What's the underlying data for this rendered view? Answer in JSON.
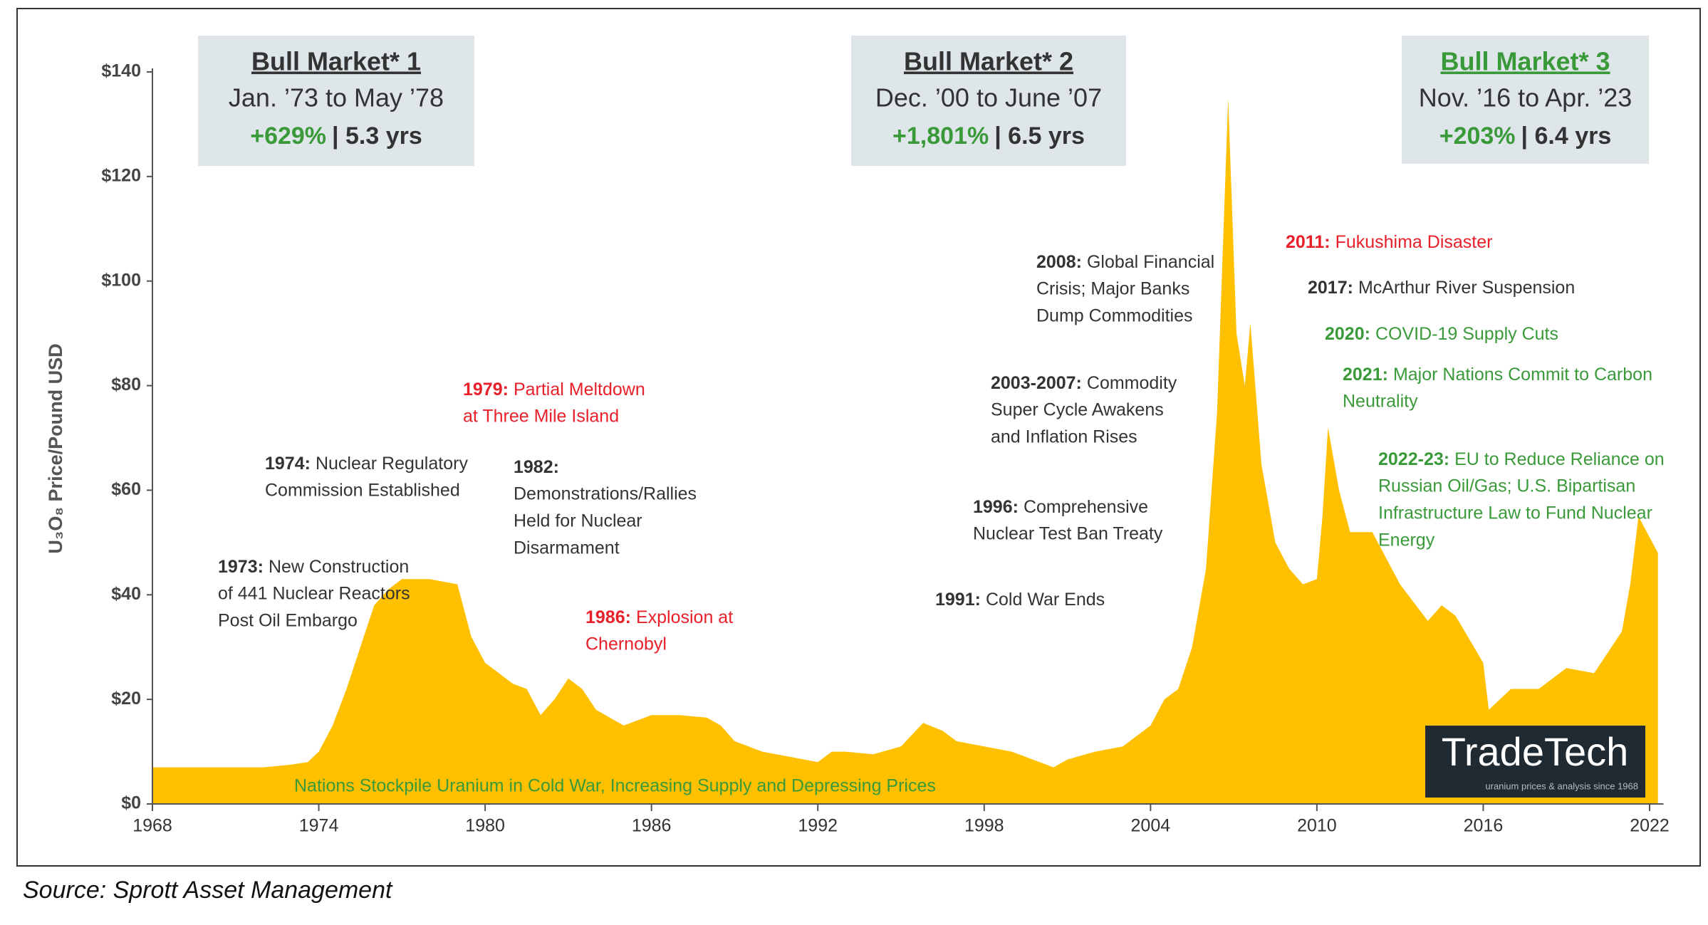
{
  "chart_data": {
    "type": "area",
    "y_label": "U₃O₈ Price/Pound USD",
    "source": "Source: Sprott Asset Management",
    "color": "#ffc000",
    "x": [
      1968,
      1972,
      1973,
      1973.6,
      1974,
      1974.5,
      1975,
      1975.5,
      1976,
      1976.5,
      1977,
      1978,
      1979,
      1979.5,
      1980,
      1981,
      1981.5,
      1982,
      1982.5,
      1983,
      1983.5,
      1984,
      1985,
      1986,
      1987,
      1988,
      1988.5,
      1989,
      1990,
      1991,
      1992,
      1992.5,
      1993,
      1994,
      1995,
      1995.8,
      1996.5,
      1997,
      1998,
      1999,
      2000,
      2000.5,
      2001,
      2002,
      2003,
      2004,
      2004.5,
      2005,
      2005.5,
      2006,
      2006.4,
      2006.8,
      2007.1,
      2007.4,
      2007.6,
      2008,
      2008.5,
      2009,
      2009.5,
      2010,
      2010.2,
      2010.4,
      2010.8,
      2011.2,
      2012,
      2013,
      2014,
      2014.5,
      2015,
      2016,
      2016.2,
      2017,
      2018,
      2019,
      2020,
      2021,
      2021.3,
      2021.6,
      2022,
      2022.3
    ],
    "values": [
      7,
      7,
      7.5,
      8,
      10,
      15,
      22,
      30,
      38,
      41,
      43,
      43,
      42,
      32,
      27,
      23,
      22,
      17,
      20,
      24,
      22,
      18,
      15,
      17,
      17,
      16.5,
      15,
      12,
      10,
      9,
      8,
      10,
      10,
      9.5,
      11,
      15.5,
      14,
      12,
      11,
      10,
      8,
      7,
      8.5,
      10,
      11,
      15,
      20,
      22,
      30,
      45,
      75,
      135,
      90,
      80,
      92,
      65,
      50,
      45,
      42,
      43,
      55,
      72,
      60,
      52,
      52,
      42,
      35,
      38,
      36,
      27,
      18,
      22,
      22,
      26,
      25,
      33,
      42,
      55,
      51,
      48
    ],
    "xlim": [
      1968,
      2022.5
    ],
    "ylim": [
      0,
      140
    ],
    "xticks": [
      1968,
      1974,
      1980,
      1986,
      1992,
      1998,
      2004,
      2010,
      2016,
      2022
    ],
    "yticks": [
      {
        "value": 0,
        "label": "$0"
      },
      {
        "value": 20,
        "label": "$20"
      },
      {
        "value": 40,
        "label": "$40"
      },
      {
        "value": 60,
        "label": "$60"
      },
      {
        "value": 80,
        "label": "$80"
      },
      {
        "value": 100,
        "label": "$100"
      },
      {
        "value": 120,
        "label": "$120"
      },
      {
        "value": 140,
        "label": "$140"
      }
    ],
    "bull_markets": [
      {
        "title": "Bull Market* 1",
        "dates": "Jan. ’73 to May ’78",
        "gain": "+629%",
        "duration": "| 5.3 yrs",
        "title_color": "#333333"
      },
      {
        "title": "Bull Market* 2",
        "dates": "Dec. ’00 to June ’07",
        "gain": "+1,801%",
        "duration": "| 6.5 yrs",
        "title_color": "#333333"
      },
      {
        "title": "Bull Market* 3",
        "dates": "Nov. ’16 to Apr. ’23",
        "gain": "+203%",
        "duration": "| 6.4 yrs",
        "title_color": "#3a9a3a"
      }
    ],
    "annotations": [
      {
        "lead": "1973:",
        "lines": [
          "New Construction",
          "of 441 Nuclear Reactors",
          "Post Oil Embargo"
        ],
        "color": "#333333"
      },
      {
        "lead": "1974:",
        "lines": [
          "Nuclear Regulatory",
          "Commission Established"
        ],
        "color": "#333333"
      },
      {
        "lead": "1979:",
        "lines": [
          "Partial Meltdown",
          "at Three Mile Island"
        ],
        "color": "#e8202a"
      },
      {
        "lead": "1982:",
        "lines": [
          "Demonstrations/Rallies",
          "Held for Nuclear",
          "Disarmament"
        ],
        "color": "#333333",
        "lead_alone": true
      },
      {
        "lead": "1986:",
        "lines": [
          "Explosion at",
          "Chernobyl"
        ],
        "color": "#e8202a"
      },
      {
        "lead": "1991:",
        "lines": [
          "Cold War Ends"
        ],
        "color": "#333333"
      },
      {
        "lead": "1996:",
        "lines": [
          "Comprehensive",
          "Nuclear Test Ban Treaty"
        ],
        "color": "#333333"
      },
      {
        "lead": "2003-2007:",
        "lines": [
          "Commodity",
          "Super Cycle Awakens",
          "and Inflation Rises"
        ],
        "color": "#333333"
      },
      {
        "lead": "2008:",
        "lines": [
          "Global Financial",
          "Crisis; Major Banks",
          "Dump Commodities"
        ],
        "color": "#333333"
      },
      {
        "lead": "2011:",
        "lines": [
          "Fukushima Disaster"
        ],
        "color": "#e8202a"
      },
      {
        "lead": "2017:",
        "lines": [
          "McArthur River Suspension"
        ],
        "color": "#333333"
      },
      {
        "lead": "2020:",
        "lines": [
          "COVID-19 Supply Cuts"
        ],
        "color": "#3a9a3a"
      },
      {
        "lead": "2021:",
        "lines": [
          "Major Nations Commit to Carbon",
          "Neutrality"
        ],
        "color": "#3a9a3a"
      },
      {
        "lead": "2022-23:",
        "lines": [
          "EU to Reduce Reliance on",
          "Russian Oil/Gas; U.S. Bipartisan",
          "Infrastructure Law to Fund Nuclear",
          "Energy"
        ],
        "color": "#3a9a3a"
      }
    ],
    "baseline_note": "Nations Stockpile Uranium in Cold War, Increasing Supply and Depressing Prices",
    "baseline_note_color": "#3a9a3a",
    "logo": "TradeTech",
    "logo_tagline": "uranium prices & analysis since 1968"
  }
}
